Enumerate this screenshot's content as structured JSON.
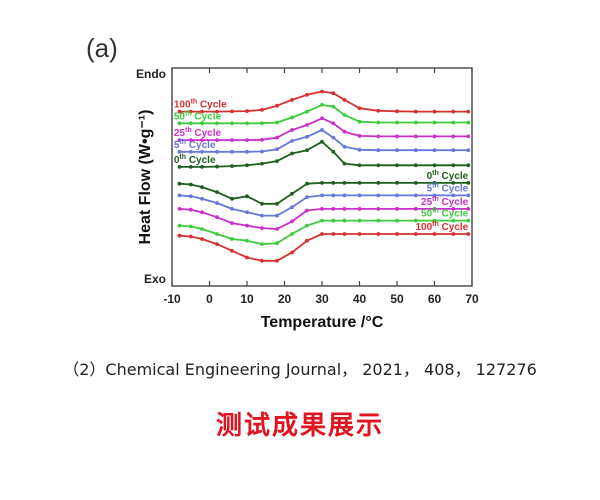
{
  "figure": {
    "panel_label": "(a)",
    "caption": "（2）Chemical Engineering Journal， 2021， 408， 127276",
    "banner": "测试成果展示"
  },
  "chart_data": {
    "type": "line",
    "title": "",
    "xlabel": "Temperature /°C",
    "ylabel": "Heat Flow (W•g⁻¹)",
    "xlim": [
      -10,
      70
    ],
    "x_ticks": [
      -10,
      0,
      10,
      20,
      30,
      40,
      50,
      60,
      70
    ],
    "y_ticks_shown": false,
    "y_units": "offset (stacked curves, arbitrary)",
    "ylim": [
      0,
      13
    ],
    "endo_label": "Endo",
    "exo_label": "Exo",
    "grid": false,
    "x": [
      -8,
      -5,
      -2,
      2,
      6,
      10,
      14,
      18,
      22,
      26,
      30,
      33,
      36,
      40,
      45,
      50,
      55,
      60,
      65,
      69
    ],
    "series": [
      {
        "name": "100th Cycle",
        "group": "heating",
        "color": "#d63030",
        "values": [
          10.4,
          10.4,
          10.4,
          10.4,
          10.41,
          10.43,
          10.5,
          10.75,
          11.1,
          11.4,
          11.6,
          11.5,
          11.1,
          10.6,
          10.45,
          10.42,
          10.4,
          10.4,
          10.4,
          10.4
        ]
      },
      {
        "name": "50th Cycle",
        "group": "heating",
        "color": "#3dcc3d",
        "values": [
          9.7,
          9.7,
          9.7,
          9.7,
          9.7,
          9.7,
          9.7,
          9.75,
          10.05,
          10.4,
          10.8,
          10.7,
          10.2,
          9.8,
          9.75,
          9.75,
          9.75,
          9.75,
          9.75,
          9.75
        ]
      },
      {
        "name": "25th Cycle",
        "group": "heating",
        "color": "#cc2ecc",
        "values": [
          8.7,
          8.7,
          8.7,
          8.7,
          8.7,
          8.7,
          8.72,
          8.85,
          9.3,
          9.6,
          10.0,
          9.7,
          9.2,
          8.95,
          8.92,
          8.92,
          8.92,
          8.92,
          8.92,
          8.92
        ]
      },
      {
        "name": "5th Cycle",
        "group": "heating",
        "color": "#6677dd",
        "values": [
          8.0,
          8.0,
          8.0,
          8.0,
          8.0,
          8.0,
          8.02,
          8.15,
          8.65,
          8.9,
          9.3,
          8.85,
          8.3,
          8.12,
          8.1,
          8.1,
          8.1,
          8.1,
          8.1,
          8.1
        ]
      },
      {
        "name": "0th Cycle",
        "group": "heating",
        "color": "#1e5e1e",
        "values": [
          7.1,
          7.1,
          7.1,
          7.12,
          7.15,
          7.2,
          7.3,
          7.45,
          7.9,
          8.1,
          8.6,
          8.0,
          7.3,
          7.2,
          7.2,
          7.2,
          7.2,
          7.2,
          7.2,
          7.2
        ]
      },
      {
        "name": "0th Cycle",
        "group": "cooling",
        "color": "#1e5e1e",
        "values": [
          6.1,
          6.05,
          5.9,
          5.6,
          5.2,
          5.35,
          4.9,
          4.9,
          5.5,
          6.1,
          6.15,
          6.15,
          6.15,
          6.15,
          6.15,
          6.15,
          6.15,
          6.15,
          6.15,
          6.15
        ]
      },
      {
        "name": "5th Cycle",
        "group": "cooling",
        "color": "#6677dd",
        "values": [
          5.4,
          5.35,
          5.2,
          4.95,
          4.6,
          4.4,
          4.2,
          4.2,
          4.7,
          5.3,
          5.4,
          5.4,
          5.4,
          5.4,
          5.4,
          5.4,
          5.4,
          5.4,
          5.4,
          5.4
        ]
      },
      {
        "name": "25th Cycle",
        "group": "cooling",
        "color": "#cc2ecc",
        "values": [
          4.6,
          4.55,
          4.4,
          4.1,
          3.75,
          3.6,
          3.45,
          3.4,
          3.85,
          4.5,
          4.6,
          4.6,
          4.6,
          4.6,
          4.6,
          4.6,
          4.6,
          4.6,
          4.6,
          4.6
        ]
      },
      {
        "name": "50th Cycle",
        "group": "cooling",
        "color": "#3dcc3d",
        "values": [
          3.6,
          3.55,
          3.4,
          3.1,
          2.8,
          2.7,
          2.5,
          2.55,
          3.1,
          3.6,
          3.9,
          3.9,
          3.9,
          3.9,
          3.9,
          3.9,
          3.9,
          3.9,
          3.9,
          3.9
        ]
      },
      {
        "name": "100th Cycle",
        "group": "cooling",
        "color": "#d63030",
        "values": [
          3.0,
          2.95,
          2.8,
          2.5,
          2.1,
          1.7,
          1.5,
          1.5,
          2.0,
          2.7,
          3.1,
          3.1,
          3.1,
          3.1,
          3.1,
          3.1,
          3.1,
          3.1,
          3.1,
          3.1
        ]
      }
    ]
  }
}
